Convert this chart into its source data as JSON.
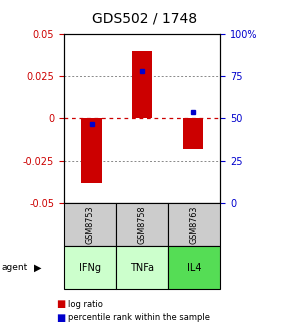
{
  "title": "GDS502 / 1748",
  "categories": [
    "IFNg",
    "TNFa",
    "IL4"
  ],
  "sample_ids": [
    "GSM8753",
    "GSM8758",
    "GSM8763"
  ],
  "log_ratios": [
    -0.038,
    0.04,
    -0.018
  ],
  "percentile_ranks": [
    47.0,
    78.0,
    54.0
  ],
  "ylim_left": [
    -0.05,
    0.05
  ],
  "ylim_right": [
    0,
    100
  ],
  "left_yticks": [
    -0.05,
    -0.025,
    0,
    0.025,
    0.05
  ],
  "right_yticks": [
    0,
    25,
    50,
    75,
    100
  ],
  "right_yticklabels": [
    "0",
    "25",
    "50",
    "75",
    "100%"
  ],
  "bar_color": "#cc0000",
  "dot_color": "#0000cc",
  "grid_color": "#888888",
  "zero_line_color": "#cc0000",
  "agent_colors": [
    "#ccffcc",
    "#ccffcc",
    "#55dd55"
  ],
  "sample_bg": "#cccccc",
  "title_fontsize": 10,
  "tick_fontsize": 7,
  "bar_width": 0.4
}
